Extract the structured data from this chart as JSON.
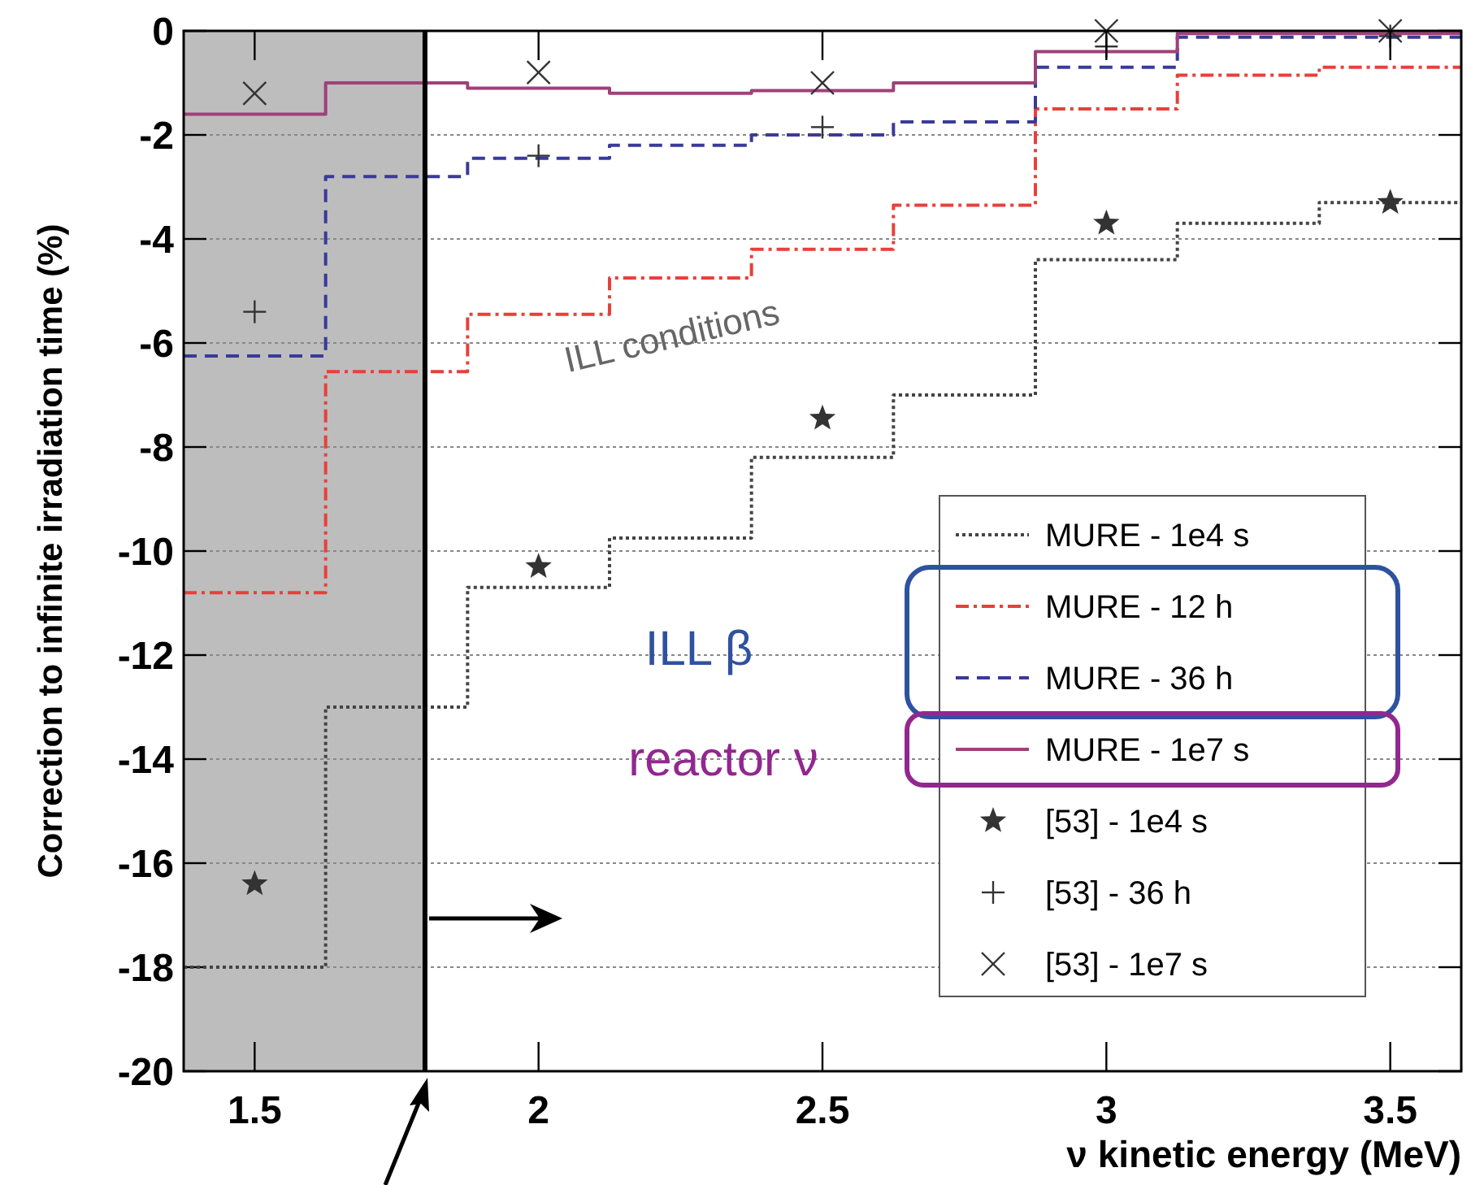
{
  "chart_data": {
    "type": "step",
    "xlabel": "ν kinetic energy (MeV)",
    "ylabel": "Correction to infinite irradiation time (%)",
    "x": [
      1.375,
      1.625,
      1.875,
      2.125,
      2.375,
      2.625,
      2.875,
      3.125,
      3.375,
      3.625
    ],
    "xlim": [
      1.375,
      3.625
    ],
    "xticks": [
      1.5,
      2,
      2.5,
      3,
      3.5
    ],
    "ylim": [
      -20,
      0
    ],
    "yticks": [
      -20,
      -18,
      -16,
      -14,
      -12,
      -10,
      -8,
      -6,
      -4,
      -2,
      0
    ],
    "grid": "y",
    "legend": "right",
    "series": [
      {
        "name": "MURE - 1e4 s",
        "color": "#444444",
        "line_style": "dotted",
        "values": [
          -18,
          -13,
          -10.7,
          -9.75,
          -8.2,
          -7,
          -4.4,
          -3.7,
          -3.3,
          -3.3
        ]
      },
      {
        "name": "MURE - 12 h",
        "color": "#e8403a",
        "line_style": "dashdot",
        "values": [
          -10.8,
          -6.55,
          -5.45,
          -4.75,
          -4.2,
          -3.35,
          -1.5,
          -0.85,
          -0.7,
          -0.7
        ]
      },
      {
        "name": "MURE - 36 h",
        "color": "#3a3a9a",
        "line_style": "dashed",
        "values": [
          -6.25,
          -2.8,
          -2.45,
          -2.2,
          -2,
          -1.75,
          -0.7,
          -0.12,
          -0.12,
          -0.12
        ]
      },
      {
        "name": "MURE - 1e7 s",
        "color": "#a0407a",
        "line_style": "solid",
        "values": [
          -1.6,
          -1,
          -1.1,
          -1.2,
          -1.15,
          -1,
          -0.4,
          -0.05,
          -0.05,
          -0.05
        ]
      },
      {
        "name": "[53] - 1e4 s",
        "type": "scatter",
        "marker": "star",
        "color": "#333333",
        "x": [
          1.5,
          2,
          2.5,
          3,
          3.5
        ],
        "values": [
          -16.4,
          -10.3,
          -7.45,
          -3.7,
          -3.3
        ]
      },
      {
        "name": "[53] - 36 h",
        "type": "scatter",
        "marker": "plus",
        "color": "#333333",
        "x": [
          1.5,
          2,
          2.5,
          3,
          3.5
        ],
        "values": [
          -5.4,
          -2.4,
          -1.85,
          -0.3,
          -0.1
        ]
      },
      {
        "name": "[53] - 1e7 s",
        "type": "scatter",
        "marker": "cross",
        "color": "#333333",
        "x": [
          1.5,
          2,
          2.5,
          3,
          3.5
        ],
        "values": [
          -1.2,
          -0.8,
          -1,
          0,
          0
        ]
      }
    ],
    "bands": [
      {
        "axis": "x",
        "from": 1.375,
        "to": 1.8,
        "color": "#bdbdbd"
      }
    ],
    "ref_lines": [
      {
        "axis": "x",
        "value": 1.8,
        "color": "#000000"
      }
    ],
    "annotations": [
      "ILL conditions",
      "ILL β",
      "reactor ν"
    ]
  }
}
